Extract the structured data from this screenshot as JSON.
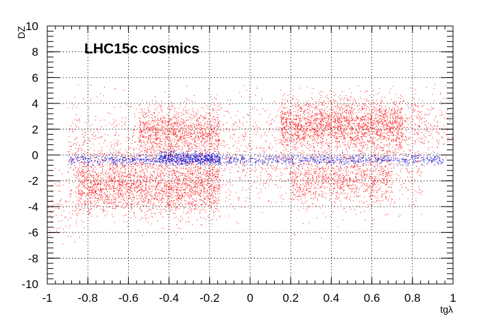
{
  "chart_data": {
    "type": "scatter",
    "title": "LHC15c cosmics",
    "xlabel": "tgλ",
    "ylabel": "DZ",
    "xlim": [
      -1,
      1
    ],
    "ylim": [
      -10,
      10
    ],
    "x_ticks": [
      -1,
      -0.8,
      -0.6,
      -0.4,
      -0.2,
      0,
      0.2,
      0.4,
      0.6,
      0.8,
      1
    ],
    "x_tick_labels": [
      "-1",
      "-0.8",
      "-0.6",
      "-0.4",
      "-0.2",
      "0",
      "0.2",
      "0.4",
      "0.6",
      "0.8",
      "1"
    ],
    "y_ticks": [
      -10,
      -8,
      -6,
      -4,
      -2,
      0,
      2,
      4,
      6,
      8,
      10
    ],
    "y_tick_labels": [
      "-10",
      "-8",
      "-6",
      "-4",
      "-2",
      "0",
      "2",
      "4",
      "6",
      "8",
      "10"
    ],
    "grid": true,
    "series": [
      {
        "color": "#ff0000",
        "clusters": [
          {
            "x_range": [
              -0.85,
              -0.15
            ],
            "y_center": -2.5,
            "y_spread": 1.1,
            "n": 2200
          },
          {
            "x_range": [
              -0.55,
              -0.15
            ],
            "y_center": 1.8,
            "y_spread": 1.0,
            "n": 1100
          },
          {
            "x_range": [
              0.15,
              0.75
            ],
            "y_center": 2.4,
            "y_spread": 1.0,
            "n": 2000
          },
          {
            "x_range": [
              0.2,
              0.7
            ],
            "y_center": -2.0,
            "y_spread": 0.9,
            "n": 800
          },
          {
            "x_range": [
              -0.9,
              0.85
            ],
            "y_center": 0.0,
            "y_spread": 2.2,
            "n": 2200
          },
          {
            "x_range": [
              0.7,
              1.0
            ],
            "y_center": 2.5,
            "y_spread": 1.2,
            "n": 250
          },
          {
            "x_range": [
              -1.0,
              -0.85
            ],
            "y_center": -4.0,
            "y_spread": 1.5,
            "n": 100
          }
        ]
      },
      {
        "color": "#0000cc",
        "clusters": [
          {
            "x_range": [
              -0.9,
              0.95
            ],
            "y_center": -0.35,
            "y_spread": 0.2,
            "n": 1300
          },
          {
            "x_range": [
              -0.45,
              -0.15
            ],
            "y_center": -0.2,
            "y_spread": 0.25,
            "n": 500
          }
        ]
      }
    ]
  }
}
